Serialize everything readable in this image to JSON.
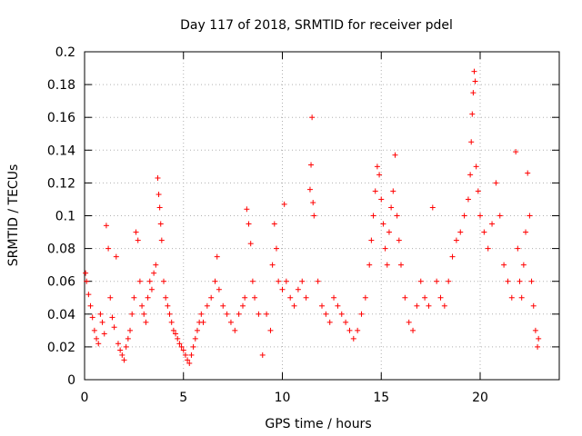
{
  "chart_data": {
    "type": "scatter",
    "title": "Day 117 of 2018, SRMTID for receiver pdel",
    "xlabel": "GPS time / hours",
    "ylabel": "SRMTID / TECUs",
    "xlim": [
      0,
      24
    ],
    "ylim": [
      0,
      0.2
    ],
    "xticks": [
      0,
      5,
      10,
      15,
      20
    ],
    "xtick_labels": [
      "0",
      "5",
      "10",
      "15",
      "20"
    ],
    "yticks": [
      0,
      0.02,
      0.04,
      0.06,
      0.08,
      0.1,
      0.12,
      0.14,
      0.16,
      0.18,
      0.2
    ],
    "ytick_labels": [
      "0",
      "0.02",
      "0.04",
      "0.06",
      "0.08",
      "0.1",
      "0.12",
      "0.14",
      "0.16",
      "0.18",
      "0.2"
    ],
    "grid": true,
    "marker": "+",
    "marker_color": "#ff0000",
    "series": [
      {
        "name": "SRMTID",
        "points": [
          [
            0.05,
            0.065
          ],
          [
            0.1,
            0.06
          ],
          [
            0.2,
            0.052
          ],
          [
            0.3,
            0.045
          ],
          [
            0.4,
            0.038
          ],
          [
            0.5,
            0.03
          ],
          [
            0.6,
            0.025
          ],
          [
            0.7,
            0.022
          ],
          [
            0.8,
            0.04
          ],
          [
            0.9,
            0.035
          ],
          [
            1.0,
            0.028
          ],
          [
            1.1,
            0.094
          ],
          [
            1.2,
            0.08
          ],
          [
            1.3,
            0.05
          ],
          [
            1.4,
            0.038
          ],
          [
            1.5,
            0.032
          ],
          [
            1.6,
            0.075
          ],
          [
            1.7,
            0.022
          ],
          [
            1.8,
            0.018
          ],
          [
            1.9,
            0.015
          ],
          [
            2.0,
            0.012
          ],
          [
            2.1,
            0.02
          ],
          [
            2.2,
            0.025
          ],
          [
            2.3,
            0.03
          ],
          [
            2.4,
            0.04
          ],
          [
            2.5,
            0.05
          ],
          [
            2.6,
            0.09
          ],
          [
            2.7,
            0.085
          ],
          [
            2.8,
            0.06
          ],
          [
            2.9,
            0.045
          ],
          [
            3.0,
            0.04
          ],
          [
            3.1,
            0.035
          ],
          [
            3.2,
            0.05
          ],
          [
            3.3,
            0.06
          ],
          [
            3.4,
            0.055
          ],
          [
            3.5,
            0.065
          ],
          [
            3.6,
            0.07
          ],
          [
            3.7,
            0.123
          ],
          [
            3.75,
            0.113
          ],
          [
            3.8,
            0.105
          ],
          [
            3.85,
            0.095
          ],
          [
            3.9,
            0.085
          ],
          [
            4.0,
            0.06
          ],
          [
            4.1,
            0.05
          ],
          [
            4.2,
            0.045
          ],
          [
            4.3,
            0.04
          ],
          [
            4.4,
            0.035
          ],
          [
            4.5,
            0.03
          ],
          [
            4.6,
            0.028
          ],
          [
            4.7,
            0.025
          ],
          [
            4.8,
            0.022
          ],
          [
            4.9,
            0.02
          ],
          [
            5.0,
            0.018
          ],
          [
            5.1,
            0.015
          ],
          [
            5.2,
            0.012
          ],
          [
            5.3,
            0.01
          ],
          [
            5.4,
            0.015
          ],
          [
            5.5,
            0.02
          ],
          [
            5.6,
            0.025
          ],
          [
            5.7,
            0.03
          ],
          [
            5.8,
            0.035
          ],
          [
            5.9,
            0.04
          ],
          [
            6.0,
            0.035
          ],
          [
            6.2,
            0.045
          ],
          [
            6.4,
            0.05
          ],
          [
            6.6,
            0.06
          ],
          [
            6.7,
            0.075
          ],
          [
            6.8,
            0.055
          ],
          [
            7.0,
            0.045
          ],
          [
            7.2,
            0.04
          ],
          [
            7.4,
            0.035
          ],
          [
            7.6,
            0.03
          ],
          [
            7.8,
            0.04
          ],
          [
            8.0,
            0.045
          ],
          [
            8.1,
            0.05
          ],
          [
            8.2,
            0.104
          ],
          [
            8.3,
            0.095
          ],
          [
            8.4,
            0.083
          ],
          [
            8.5,
            0.06
          ],
          [
            8.6,
            0.05
          ],
          [
            8.8,
            0.04
          ],
          [
            9.0,
            0.015
          ],
          [
            9.2,
            0.04
          ],
          [
            9.4,
            0.03
          ],
          [
            9.5,
            0.07
          ],
          [
            9.6,
            0.095
          ],
          [
            9.7,
            0.08
          ],
          [
            9.8,
            0.06
          ],
          [
            10.0,
            0.055
          ],
          [
            10.1,
            0.107
          ],
          [
            10.2,
            0.06
          ],
          [
            10.4,
            0.05
          ],
          [
            10.6,
            0.045
          ],
          [
            10.8,
            0.055
          ],
          [
            11.0,
            0.06
          ],
          [
            11.2,
            0.05
          ],
          [
            11.4,
            0.116
          ],
          [
            11.45,
            0.131
          ],
          [
            11.5,
            0.16
          ],
          [
            11.55,
            0.108
          ],
          [
            11.6,
            0.1
          ],
          [
            11.8,
            0.06
          ],
          [
            12.0,
            0.045
          ],
          [
            12.2,
            0.04
          ],
          [
            12.4,
            0.035
          ],
          [
            12.6,
            0.05
          ],
          [
            12.8,
            0.045
          ],
          [
            13.0,
            0.04
          ],
          [
            13.2,
            0.035
          ],
          [
            13.4,
            0.03
          ],
          [
            13.6,
            0.025
          ],
          [
            13.8,
            0.03
          ],
          [
            14.0,
            0.04
          ],
          [
            14.2,
            0.05
          ],
          [
            14.4,
            0.07
          ],
          [
            14.5,
            0.085
          ],
          [
            14.6,
            0.1
          ],
          [
            14.7,
            0.115
          ],
          [
            14.8,
            0.13
          ],
          [
            14.9,
            0.125
          ],
          [
            15.0,
            0.11
          ],
          [
            15.1,
            0.095
          ],
          [
            15.2,
            0.08
          ],
          [
            15.3,
            0.07
          ],
          [
            15.4,
            0.09
          ],
          [
            15.5,
            0.105
          ],
          [
            15.6,
            0.115
          ],
          [
            15.7,
            0.137
          ],
          [
            15.8,
            0.1
          ],
          [
            15.9,
            0.085
          ],
          [
            16.0,
            0.07
          ],
          [
            16.2,
            0.05
          ],
          [
            16.4,
            0.035
          ],
          [
            16.6,
            0.03
          ],
          [
            16.8,
            0.045
          ],
          [
            17.0,
            0.06
          ],
          [
            17.2,
            0.05
          ],
          [
            17.4,
            0.045
          ],
          [
            17.6,
            0.105
          ],
          [
            17.8,
            0.06
          ],
          [
            18.0,
            0.05
          ],
          [
            18.2,
            0.045
          ],
          [
            18.4,
            0.06
          ],
          [
            18.6,
            0.075
          ],
          [
            18.8,
            0.085
          ],
          [
            19.0,
            0.09
          ],
          [
            19.2,
            0.1
          ],
          [
            19.4,
            0.11
          ],
          [
            19.5,
            0.125
          ],
          [
            19.55,
            0.145
          ],
          [
            19.6,
            0.162
          ],
          [
            19.65,
            0.175
          ],
          [
            19.7,
            0.188
          ],
          [
            19.75,
            0.182
          ],
          [
            19.8,
            0.13
          ],
          [
            19.9,
            0.115
          ],
          [
            20.0,
            0.1
          ],
          [
            20.2,
            0.09
          ],
          [
            20.4,
            0.08
          ],
          [
            20.6,
            0.095
          ],
          [
            20.8,
            0.12
          ],
          [
            21.0,
            0.1
          ],
          [
            21.2,
            0.07
          ],
          [
            21.4,
            0.06
          ],
          [
            21.6,
            0.05
          ],
          [
            21.8,
            0.139
          ],
          [
            21.9,
            0.08
          ],
          [
            22.0,
            0.06
          ],
          [
            22.1,
            0.05
          ],
          [
            22.2,
            0.07
          ],
          [
            22.3,
            0.09
          ],
          [
            22.4,
            0.126
          ],
          [
            22.5,
            0.1
          ],
          [
            22.6,
            0.06
          ],
          [
            22.7,
            0.045
          ],
          [
            22.8,
            0.03
          ],
          [
            22.9,
            0.02
          ],
          [
            22.95,
            0.025
          ]
        ]
      }
    ]
  }
}
